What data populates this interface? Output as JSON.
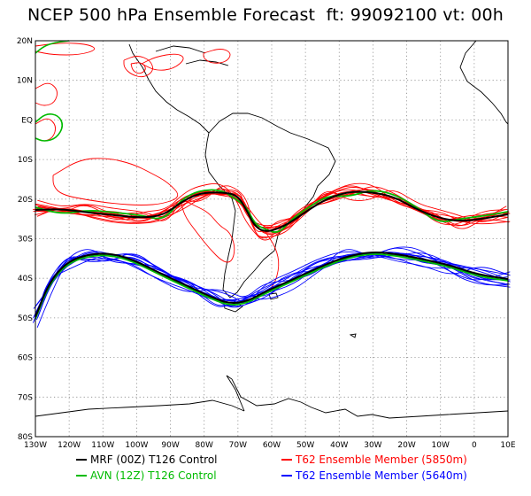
{
  "title": "NCEP 500 hPa Ensemble Forecast  ft: 99092100 vt: 00h",
  "map": {
    "lon_range": [
      -130,
      10
    ],
    "lat_range": [
      -80,
      20
    ],
    "x_ticks": [
      "130W",
      "120W",
      "110W",
      "100W",
      "90W",
      "80W",
      "70W",
      "60W",
      "50W",
      "40W",
      "30W",
      "20W",
      "10W",
      "0",
      "10E"
    ],
    "y_ticks": [
      "20N",
      "10N",
      "EQ",
      "10S",
      "20S",
      "30S",
      "40S",
      "50S",
      "60S",
      "70S",
      "80S"
    ],
    "grid": true
  },
  "legend": [
    {
      "label": "MRF (00Z) T126 Control",
      "color": "#000000"
    },
    {
      "label": "AVN (12Z) T126 Control",
      "color": "#00bb00"
    },
    {
      "label": "T62 Ensemble Member (5850m)",
      "color": "#ff0000"
    },
    {
      "label": "T62 Ensemble Member (5640m)",
      "color": "#0000ff"
    }
  ],
  "colors": {
    "mrf_control": "#000000",
    "avn_control": "#00bb00",
    "member_5850": "#ff0000",
    "member_5640": "#0000ff",
    "coastline": "#000000",
    "grid": "#888888"
  }
}
